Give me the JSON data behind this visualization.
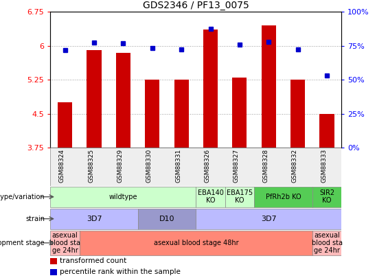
{
  "title": "GDS2346 / PF13_0075",
  "samples": [
    "GSM88324",
    "GSM88325",
    "GSM88329",
    "GSM88330",
    "GSM88331",
    "GSM88326",
    "GSM88327",
    "GSM88328",
    "GSM88332",
    "GSM88333"
  ],
  "transformed_counts": [
    4.75,
    5.9,
    5.85,
    5.25,
    5.25,
    6.35,
    5.3,
    6.45,
    5.25,
    4.5
  ],
  "percentile_ranks": [
    5.9,
    6.07,
    6.05,
    5.95,
    5.92,
    6.37,
    6.02,
    6.08,
    5.92,
    5.35
  ],
  "ymin": 3.75,
  "ymax": 6.75,
  "yticks": [
    3.75,
    4.5,
    5.25,
    6.0,
    6.75
  ],
  "yticklabels": [
    "3.75",
    "4.5",
    "5.25",
    "6",
    "6.75"
  ],
  "y2ticks": [
    0,
    25,
    50,
    75,
    100
  ],
  "bar_color": "#cc0000",
  "dot_color": "#0000cc",
  "genotype_row": {
    "label": "genotype/variation",
    "segments": [
      {
        "text": "wildtype",
        "start": 0,
        "end": 4,
        "color": "#ccffcc"
      },
      {
        "text": "EBA140\nKO",
        "start": 5,
        "end": 5,
        "color": "#ccffcc"
      },
      {
        "text": "EBA175\nKO",
        "start": 6,
        "end": 6,
        "color": "#ccffcc"
      },
      {
        "text": "PfRh2b KO",
        "start": 7,
        "end": 8,
        "color": "#55cc55"
      },
      {
        "text": "SIR2\nKO",
        "start": 9,
        "end": 9,
        "color": "#55cc55"
      }
    ]
  },
  "strain_row": {
    "label": "strain",
    "segments": [
      {
        "text": "3D7",
        "start": 0,
        "end": 2,
        "color": "#bbbbff"
      },
      {
        "text": "D10",
        "start": 3,
        "end": 4,
        "color": "#9999cc"
      },
      {
        "text": "3D7",
        "start": 5,
        "end": 9,
        "color": "#bbbbff"
      }
    ]
  },
  "dev_stage_row": {
    "label": "development stage",
    "segments": [
      {
        "text": "asexual\nblood sta\nge 24hr",
        "start": 0,
        "end": 0,
        "color": "#ffbbbb"
      },
      {
        "text": "asexual blood stage 48hr",
        "start": 1,
        "end": 8,
        "color": "#ff8877"
      },
      {
        "text": "asexual\nblood sta\nge 24hr",
        "start": 9,
        "end": 9,
        "color": "#ffbbbb"
      }
    ]
  },
  "legend": [
    {
      "color": "#cc0000",
      "label": "transformed count"
    },
    {
      "color": "#0000cc",
      "label": "percentile rank within the sample"
    }
  ],
  "row_labels": [
    "genotype/variation",
    "strain",
    "development stage"
  ]
}
